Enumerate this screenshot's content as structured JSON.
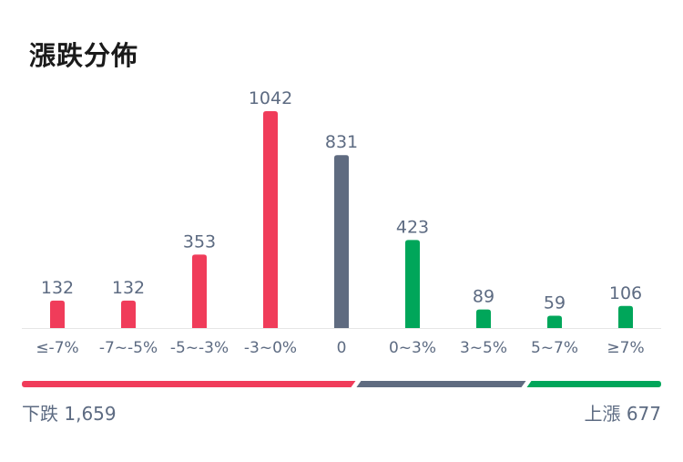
{
  "title": "漲跌分佈",
  "chart_data": {
    "type": "bar",
    "categories": [
      "≤-7%",
      "-7~-5%",
      "-5~-3%",
      "-3~0%",
      "0",
      "0~3%",
      "3~5%",
      "5~7%",
      "≥7%"
    ],
    "values": [
      132,
      132,
      353,
      1042,
      831,
      423,
      89,
      59,
      106
    ],
    "bar_colors": [
      "#f03c5a",
      "#f03c5a",
      "#f03c5a",
      "#f03c5a",
      "#5f6b80",
      "#00a65a",
      "#00a65a",
      "#00a65a",
      "#00a65a"
    ],
    "ylim": [
      0,
      1042
    ]
  },
  "summary": {
    "down_label": "下跌",
    "down_count": "1,659",
    "up_label": "上漲",
    "up_count": "677",
    "flat_count": 831
  },
  "colors": {
    "down": "#f03c5a",
    "flat": "#5f6b80",
    "up": "#00a65a",
    "axis": "#e6e6e6"
  }
}
